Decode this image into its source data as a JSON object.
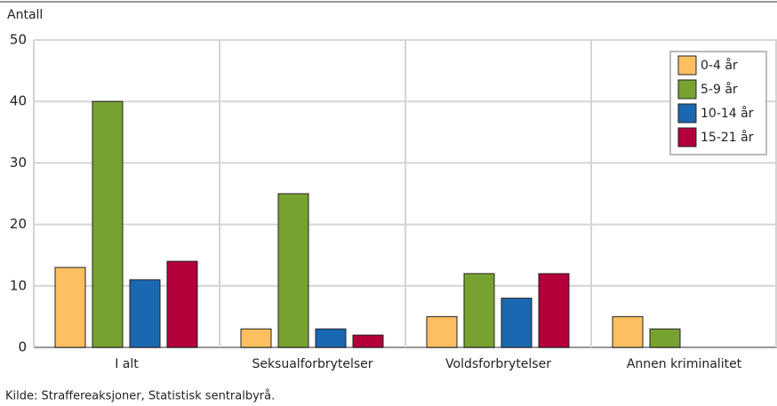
{
  "chart_data": {
    "type": "bar",
    "y_label": "Antall",
    "categories": [
      "I alt",
      "Seksualforbrytelser",
      "Voldsforbrytelser",
      "Annen kriminalitet"
    ],
    "series": [
      {
        "name": "0-4 år",
        "color": "#fdbf5f",
        "values": [
          13,
          3,
          5,
          5
        ]
      },
      {
        "name": "5-9 år",
        "color": "#78a22f",
        "values": [
          40,
          25,
          12,
          3
        ]
      },
      {
        "name": "10-14 år",
        "color": "#1a67b2",
        "values": [
          11,
          3,
          8,
          0
        ]
      },
      {
        "name": "15-21 år",
        "color": "#b3003a",
        "values": [
          14,
          2,
          12,
          0
        ]
      }
    ],
    "ylim": [
      0,
      50
    ],
    "yticks": [
      0,
      10,
      20,
      30,
      40,
      50
    ],
    "grid": true,
    "legend": "top-right",
    "source": "Kilde: Straffereaksjoner, Statistisk sentralbyrå."
  }
}
